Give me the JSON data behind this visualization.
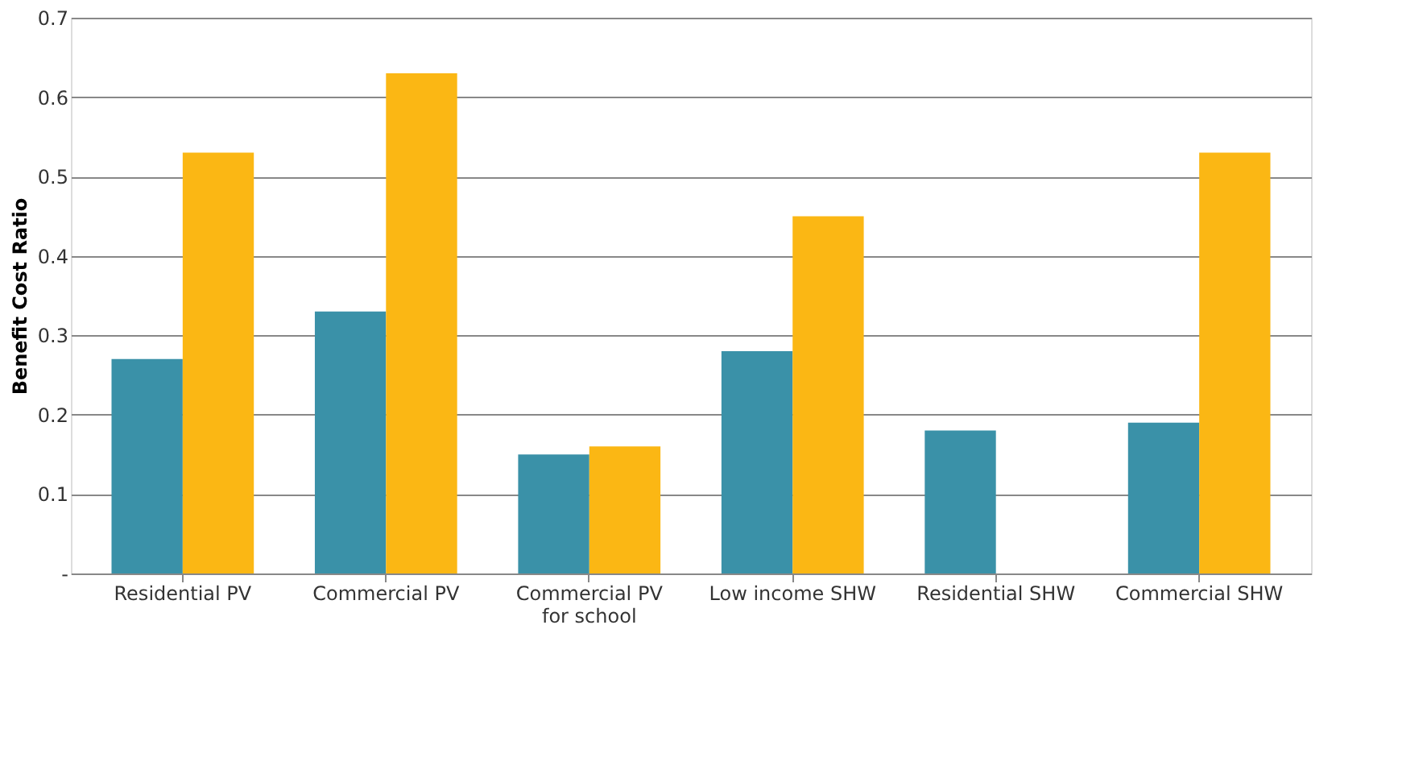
{
  "chart_data": {
    "type": "bar",
    "ylabel": "Benefit Cost Ratio",
    "categories": [
      "Residential PV",
      "Commercial PV",
      "Commercial PV for school",
      "Low income SHW",
      "Residential SHW",
      "Commercial SHW"
    ],
    "series": [
      {
        "color": "#3a91a8",
        "values": [
          0.27,
          0.33,
          0.15,
          0.28,
          0.18,
          0.19
        ]
      },
      {
        "color": "#fbb714",
        "values": [
          0.53,
          0.63,
          0.16,
          0.45,
          null,
          0.53
        ]
      }
    ],
    "ylim": [
      0,
      0.7
    ],
    "yticks": [
      {
        "value": 0,
        "label": "-"
      },
      0.1,
      0.2,
      0.3,
      0.4,
      0.5,
      0.6,
      0.7
    ],
    "grid": "y",
    "legend": false
  }
}
